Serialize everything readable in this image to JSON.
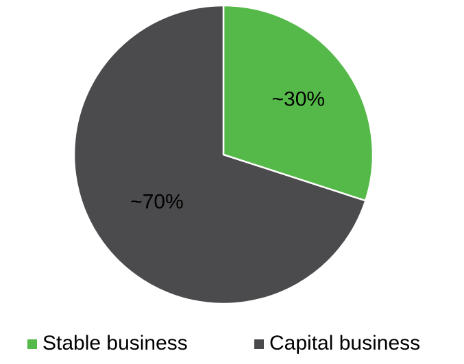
{
  "chart_data": {
    "type": "pie",
    "title": "",
    "slices": [
      {
        "label": "Stable business",
        "value": 30,
        "data_label": "~30%",
        "color": "#54b948"
      },
      {
        "label": "Capital business",
        "value": 70,
        "data_label": "~70%",
        "color": "#4b4b4d"
      }
    ],
    "start_angle_deg": 0,
    "direction": "clockwise",
    "legend_position": "bottom",
    "data_label_color": "#000000"
  }
}
